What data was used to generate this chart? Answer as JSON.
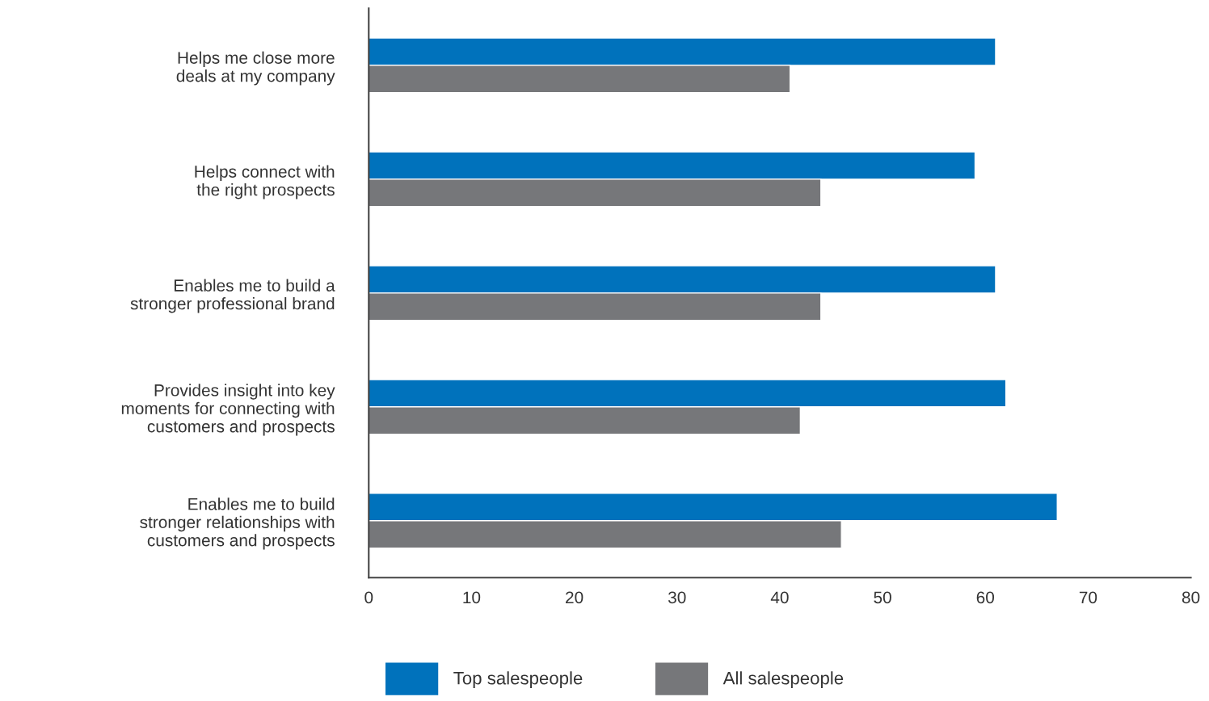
{
  "chart_data": {
    "type": "bar",
    "orientation": "horizontal",
    "categories": [
      "Helps me close more\ndeals at my company",
      "Helps connect with\nthe right prospects",
      "Enables me to build a\nstronger professional brand",
      "Provides insight into key\nmoments for connecting with\ncustomers and prospects",
      "Enables me to build\nstronger relationships with\ncustomers and prospects"
    ],
    "series": [
      {
        "name": "Top salespeople",
        "color": "#0072bc",
        "values": [
          61,
          59,
          61,
          62,
          67
        ]
      },
      {
        "name": "All salespeople",
        "color": "#76777a",
        "values": [
          41,
          44,
          44,
          42,
          46
        ]
      }
    ],
    "xlim": [
      0,
      80
    ],
    "xticks": [
      0,
      10,
      20,
      30,
      40,
      50,
      60,
      70,
      80
    ],
    "grid": false,
    "legend": "bottom"
  }
}
